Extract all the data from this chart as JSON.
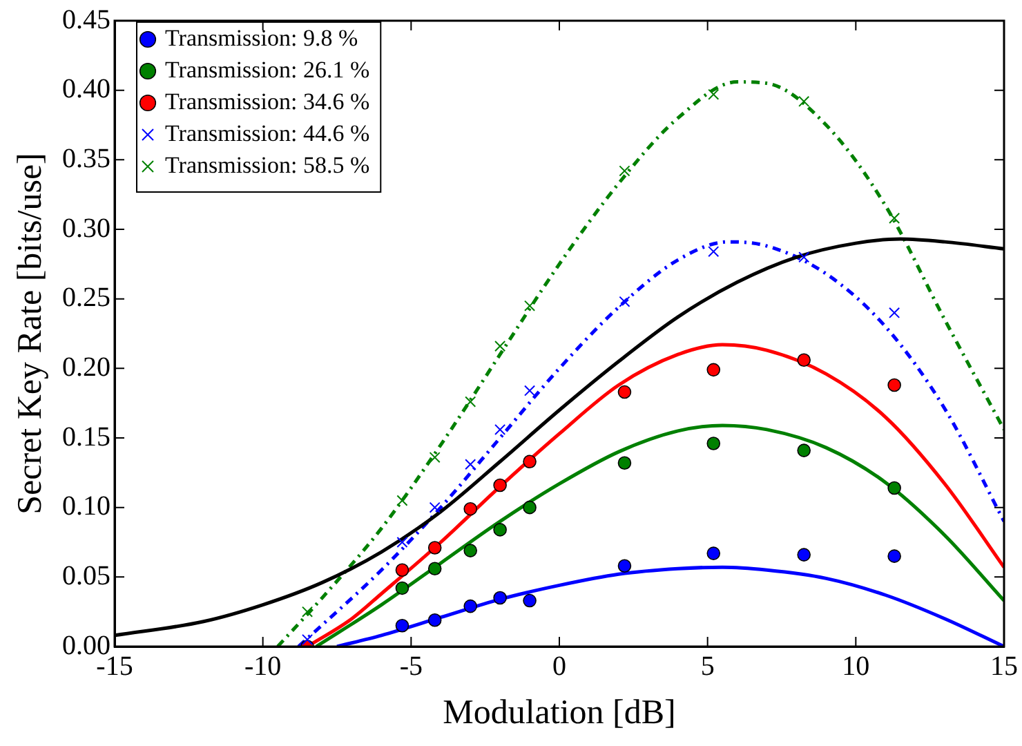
{
  "chart_data": {
    "type": "scatter",
    "xlabel": "Modulation [dB]",
    "ylabel": "Secret Key Rate [bits/use]",
    "xlim": [
      -15,
      15
    ],
    "ylim": [
      0,
      0.45
    ],
    "xticks": [
      -15,
      -10,
      -5,
      0,
      5,
      10,
      15
    ],
    "yticks": [
      {
        "value": 0,
        "label": "0.00"
      },
      {
        "value": 0.05,
        "label": "0.05"
      },
      {
        "value": 0.1,
        "label": "0.10"
      },
      {
        "value": 0.15,
        "label": "0.15"
      },
      {
        "value": 0.2,
        "label": "0.20"
      },
      {
        "value": 0.25,
        "label": "0.25"
      },
      {
        "value": 0.3,
        "label": "0.30"
      },
      {
        "value": 0.35,
        "label": "0.35"
      },
      {
        "value": 0.4,
        "label": "0.40"
      },
      {
        "value": 0.45,
        "label": "0.45"
      }
    ],
    "grid": false,
    "legend": "top left",
    "series": [
      {
        "name": "Transmission: 9.8 %",
        "color": "#0000ff",
        "marker": "circle",
        "x": [
          -5.3,
          -4.2,
          -3.0,
          -2.0,
          -1.0,
          2.2,
          5.2,
          8.25,
          11.3
        ],
        "values": [
          0.015,
          0.019,
          0.029,
          0.035,
          0.033,
          0.058,
          0.067,
          0.066,
          0.065
        ]
      },
      {
        "name": "Transmission: 26.1 %",
        "color": "#008000",
        "marker": "circle",
        "x": [
          -5.3,
          -4.2,
          -3.0,
          -2.0,
          -1.0,
          2.2,
          5.2,
          8.25,
          11.3
        ],
        "values": [
          0.042,
          0.056,
          0.069,
          0.084,
          0.1,
          0.132,
          0.146,
          0.141,
          0.114
        ]
      },
      {
        "name": "Transmission: 34.6 %",
        "color": "#ff0000",
        "marker": "circle",
        "x": [
          -8.5,
          -5.3,
          -4.2,
          -3.0,
          -2.0,
          -1.0,
          2.2,
          5.2,
          8.25,
          11.3
        ],
        "values": [
          0.0,
          0.055,
          0.071,
          0.099,
          0.116,
          0.133,
          0.183,
          0.199,
          0.206,
          0.188
        ]
      },
      {
        "name": "Transmission: 44.6 %",
        "color": "#0000ff",
        "marker": "cross",
        "x": [
          -8.5,
          -5.3,
          -4.2,
          -3.0,
          -2.0,
          -1.0,
          2.2,
          5.2,
          8.25,
          11.3
        ],
        "values": [
          0.005,
          0.075,
          0.1,
          0.131,
          0.156,
          0.184,
          0.248,
          0.284,
          0.28,
          0.24
        ]
      },
      {
        "name": "Transmission: 58.5 %",
        "color": "#008000",
        "marker": "cross",
        "x": [
          -8.5,
          -5.3,
          -4.2,
          -3.0,
          -2.0,
          -1.0,
          2.2,
          5.2,
          8.25,
          11.3
        ],
        "values": [
          0.025,
          0.105,
          0.136,
          0.176,
          0.216,
          0.245,
          0.342,
          0.397,
          0.392,
          0.308
        ]
      },
      {
        "type": "line",
        "color": "#000000",
        "marker": "none",
        "line_style": "solid",
        "x": [
          -15,
          -12,
          -10,
          -8,
          -6,
          -4,
          -2,
          0,
          2,
          4,
          6,
          8,
          10,
          11.5,
          13,
          15
        ],
        "values": [
          0.008,
          0.018,
          0.03,
          0.046,
          0.068,
          0.097,
          0.133,
          0.17,
          0.205,
          0.237,
          0.262,
          0.28,
          0.29,
          0.293,
          0.291,
          0.286
        ]
      },
      {
        "type": "line",
        "color": "#ff0000",
        "marker": "none",
        "line_style": "solid",
        "x": [
          -8.5,
          -7,
          -6,
          -4,
          -2,
          0,
          2,
          4,
          5.5,
          7,
          9,
          11,
          13,
          15
        ],
        "values": [
          0,
          0.02,
          0.038,
          0.075,
          0.115,
          0.153,
          0.188,
          0.21,
          0.217,
          0.213,
          0.196,
          0.165,
          0.117,
          0.057
        ]
      },
      {
        "type": "line",
        "color": "#008000",
        "marker": "none",
        "line_style": "solid",
        "x": [
          -8.2,
          -6,
          -4,
          -2,
          0,
          2,
          4,
          5.5,
          7,
          9,
          11,
          13,
          15
        ],
        "values": [
          0,
          0.03,
          0.06,
          0.09,
          0.117,
          0.14,
          0.155,
          0.159,
          0.156,
          0.143,
          0.118,
          0.08,
          0.033
        ]
      },
      {
        "type": "line",
        "color": "#0000ff",
        "marker": "none",
        "line_style": "solid",
        "x": [
          -7.5,
          -6,
          -4,
          -2,
          0,
          2,
          4,
          5.5,
          7,
          9,
          11,
          13,
          15
        ],
        "values": [
          0,
          0.008,
          0.021,
          0.034,
          0.044,
          0.052,
          0.056,
          0.057,
          0.055,
          0.049,
          0.037,
          0.02,
          0
        ]
      },
      {
        "type": "line",
        "color": "#0000ff",
        "marker": "none",
        "line_style": "dashed",
        "x": [
          -8.8,
          -6,
          -4,
          -2,
          0,
          2,
          4,
          5.7,
          7,
          9,
          11,
          13,
          15
        ],
        "values": [
          0,
          0.055,
          0.1,
          0.15,
          0.2,
          0.244,
          0.278,
          0.291,
          0.288,
          0.268,
          0.23,
          0.171,
          0.09
        ]
      },
      {
        "type": "line",
        "color": "#008000",
        "marker": "none",
        "line_style": "dashed",
        "x": [
          -9.5,
          -8,
          -6,
          -4,
          -2,
          0,
          2,
          4,
          6,
          7,
          9,
          11,
          13,
          15
        ],
        "values": [
          0,
          0.035,
          0.085,
          0.145,
          0.21,
          0.275,
          0.333,
          0.38,
          0.406,
          0.405,
          0.375,
          0.317,
          0.235,
          0.156
        ]
      }
    ]
  }
}
